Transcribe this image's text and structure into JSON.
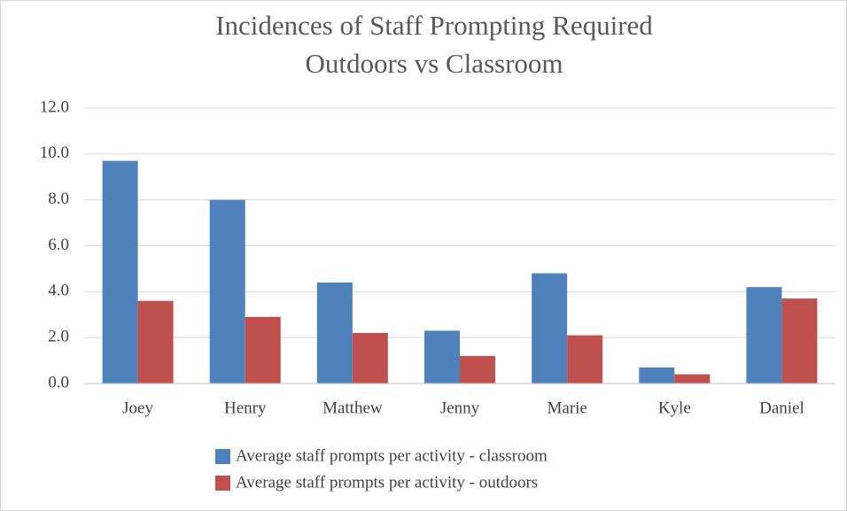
{
  "chart_data": {
    "type": "bar",
    "title": [
      "Incidences of Staff Prompting Required",
      "Outdoors vs Classroom"
    ],
    "categories": [
      "Joey",
      "Henry",
      "Matthew",
      "Jenny",
      "Marie",
      "Kyle",
      "Daniel"
    ],
    "series": [
      {
        "name": "Average staff prompts per activity - classroom",
        "color": "#4f81bd",
        "values": [
          9.7,
          8.0,
          4.4,
          2.3,
          4.8,
          0.7,
          4.2
        ]
      },
      {
        "name": "Average staff prompts per activity - outdoors",
        "color": "#c0504d",
        "values": [
          3.6,
          2.9,
          2.2,
          1.2,
          2.1,
          0.4,
          3.7
        ]
      }
    ],
    "ylim": [
      0,
      12
    ],
    "yticks": [
      {
        "value": 0,
        "label": "0.0"
      },
      {
        "value": 2,
        "label": "2.0"
      },
      {
        "value": 4,
        "label": "4.0"
      },
      {
        "value": 6,
        "label": "6.0"
      },
      {
        "value": 8,
        "label": "8.0"
      },
      {
        "value": 10,
        "label": "10.0"
      },
      {
        "value": 12,
        "label": "12.0"
      }
    ],
    "grid": true,
    "legend": "bottom"
  }
}
